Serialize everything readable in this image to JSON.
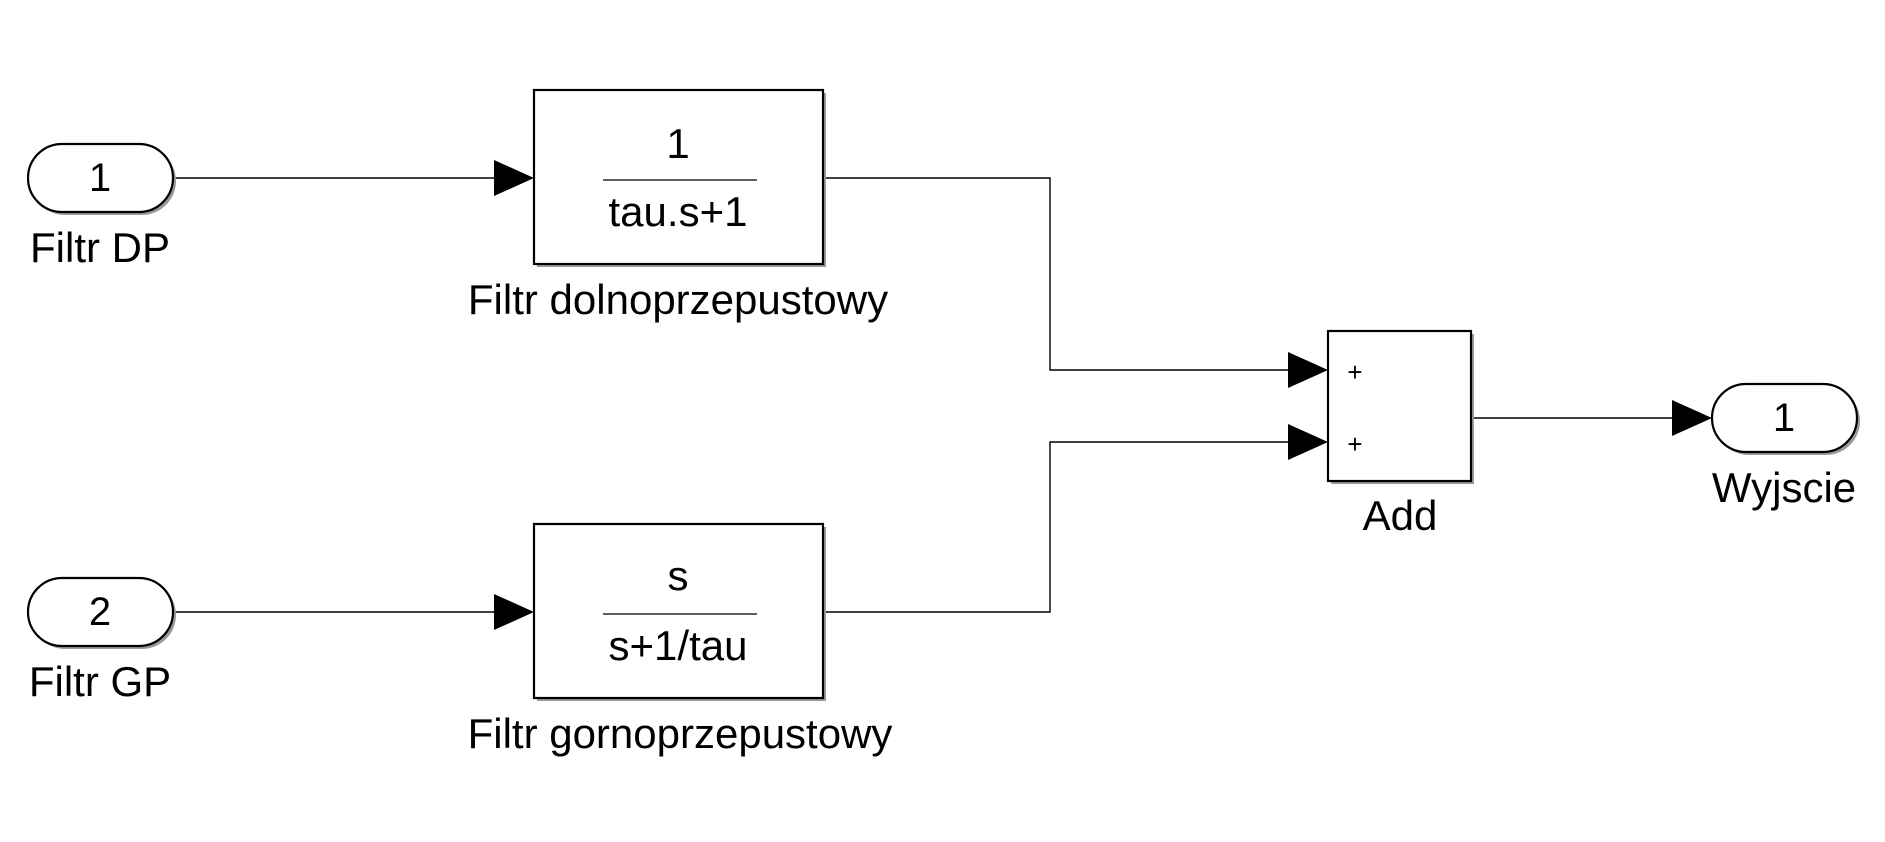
{
  "inports": [
    {
      "number": "1",
      "label": "Filtr DP"
    },
    {
      "number": "2",
      "label": "Filtr GP"
    }
  ],
  "transfer_functions": [
    {
      "numerator": "1",
      "denominator": "tau.s+1",
      "label": "Filtr dolnoprzepustowy"
    },
    {
      "numerator": "s",
      "denominator": "s+1/tau",
      "label": "Filtr gornoprzepustowy"
    }
  ],
  "sum_block": {
    "label": "Add",
    "signs": [
      "+",
      "+"
    ]
  },
  "outport": {
    "number": "1",
    "label": "Wyjscie"
  }
}
